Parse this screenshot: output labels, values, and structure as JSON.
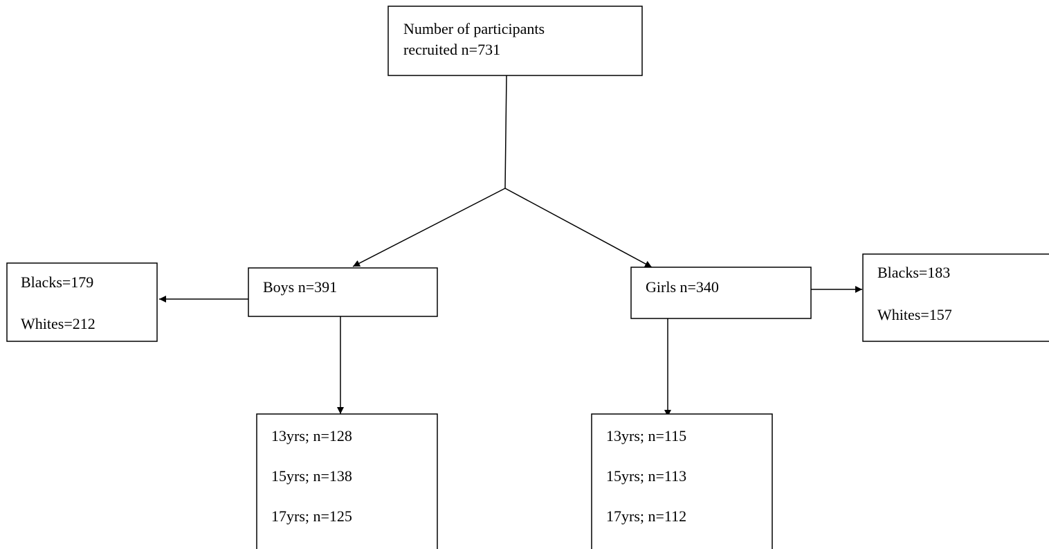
{
  "nodes": [
    {
      "lines": [
        "Number of participants",
        "recruited n=731"
      ]
    },
    {
      "lines": [
        "Boys n=391"
      ]
    },
    {
      "lines": [
        "Girls n=340"
      ]
    },
    {
      "lines": [
        "Blacks=179",
        "Whites=212"
      ]
    },
    {
      "lines": [
        "Blacks=183",
        "Whites=157"
      ]
    },
    {
      "lines": [
        "13yrs; n=128",
        "15yrs; n=138",
        "17yrs; n=125"
      ]
    },
    {
      "lines": [
        "13yrs; n=115",
        "15yrs; n=113",
        "17yrs; n=112"
      ]
    }
  ]
}
